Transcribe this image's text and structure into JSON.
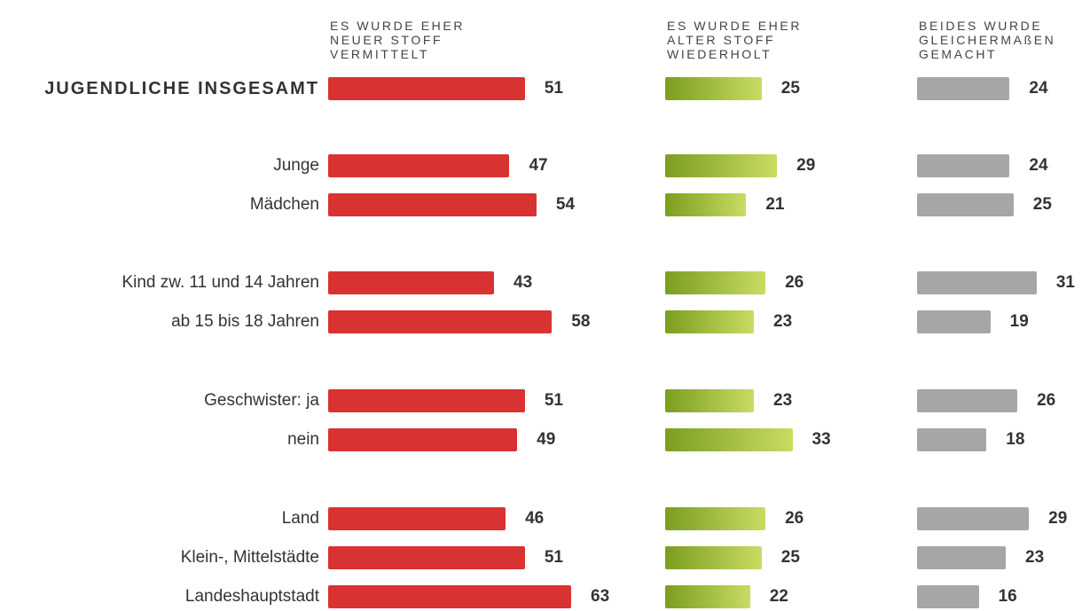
{
  "chart_data": {
    "type": "bar",
    "categories": [
      "JUGENDLICHE INSGESAMT",
      "Junge",
      "Mädchen",
      "Kind zw. 11 und 14 Jahren",
      "ab 15 bis 18 Jahren",
      "Geschwister: ja",
      "nein",
      "Land",
      "Klein-, Mittelstädte",
      "Landeshauptstadt"
    ],
    "series": [
      {
        "name": "ES WURDE EHER NEUER STOFF VERMITTELT",
        "color": "#d93232",
        "values": [
          51,
          47,
          54,
          43,
          58,
          51,
          49,
          46,
          51,
          63
        ]
      },
      {
        "name": "ES WURDE EHER ALTER STOFF WIEDERHOLT",
        "color": [
          "#7b9e20",
          "#c8dc62"
        ],
        "values": [
          25,
          29,
          21,
          26,
          23,
          23,
          33,
          26,
          25,
          22
        ]
      },
      {
        "name": "BEIDES WURDE GLEICHERMAßEN GEMACHT",
        "color": "#a6a6a6",
        "values": [
          24,
          24,
          25,
          31,
          19,
          26,
          18,
          29,
          23,
          16
        ]
      }
    ]
  }
}
